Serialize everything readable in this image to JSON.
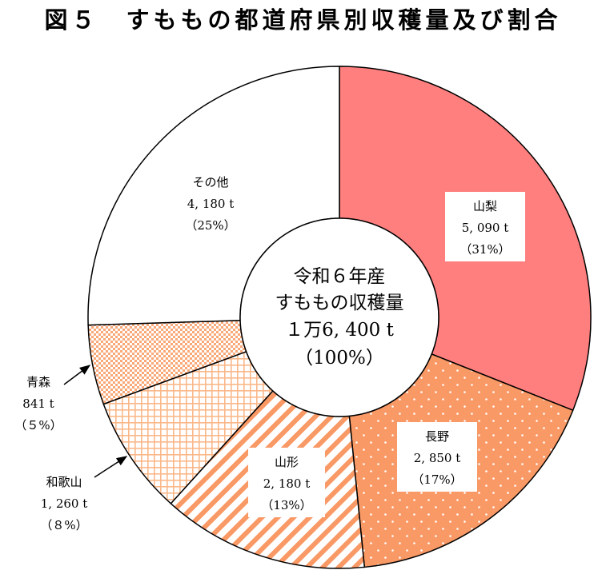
{
  "title": "図５　すももの都道府県別収穫量及び割合",
  "colors": {
    "yamanashi": "#ff7f7f",
    "orange": "#f99966",
    "light_orange": "#fbc39c",
    "outline": "#000000"
  },
  "chart_data": {
    "type": "pie",
    "subtype": "donut",
    "title": "図５　すももの都道府県別収穫量及び割合",
    "center_label": [
      "令和６年産",
      "すももの収穫量",
      "１万6, 400 t",
      "（100%）"
    ],
    "unit": "t",
    "total": 16400,
    "slices": [
      {
        "label": "山梨",
        "value": 5090,
        "value_text": "5, 090 t",
        "percent_text": "（31%）",
        "fill": "solid",
        "color": "#ff7f7f"
      },
      {
        "label": "長野",
        "value": 2850,
        "value_text": "2, 850 t",
        "percent_text": "（17%）",
        "fill": "dots",
        "color": "#f99966"
      },
      {
        "label": "山形",
        "value": 2180,
        "value_text": "2, 180 t",
        "percent_text": "（13%）",
        "fill": "diagonal-stripes",
        "color": "#f99966"
      },
      {
        "label": "和歌山",
        "value": 1260,
        "value_text": "1, 260 t",
        "percent_text": "（８%）",
        "fill": "grid",
        "color": "#fbc39c"
      },
      {
        "label": "青森",
        "value": 841,
        "value_text": "841 t",
        "percent_text": "（５%）",
        "fill": "fine-checker",
        "color": "#f99966"
      },
      {
        "label": "その他",
        "value": 4180,
        "value_text": "4, 180 t",
        "percent_text": "（25%）",
        "fill": "none",
        "color": "#ffffff"
      }
    ]
  }
}
